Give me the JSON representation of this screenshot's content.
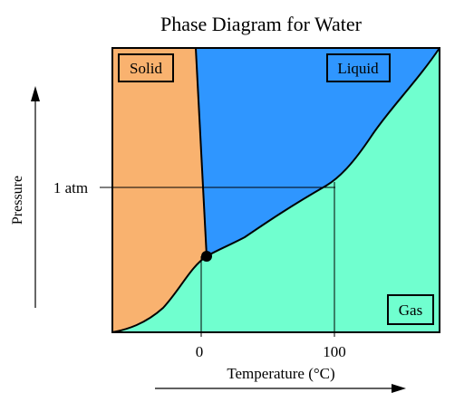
{
  "title": "Phase Diagram for Water",
  "regions": {
    "solid": "Solid",
    "liquid": "Liquid",
    "gas": "Gas"
  },
  "axes": {
    "y_label": "Pressure",
    "x_label": "Temperature (°C)",
    "y_tick": "1 atm",
    "x_ticks": [
      "0",
      "100"
    ]
  },
  "colors": {
    "solid": "#f9b26f",
    "liquid": "#2f96ff",
    "gas": "#70ffcf",
    "line": "#000000"
  },
  "points": {
    "triple_point": "triple point"
  }
}
